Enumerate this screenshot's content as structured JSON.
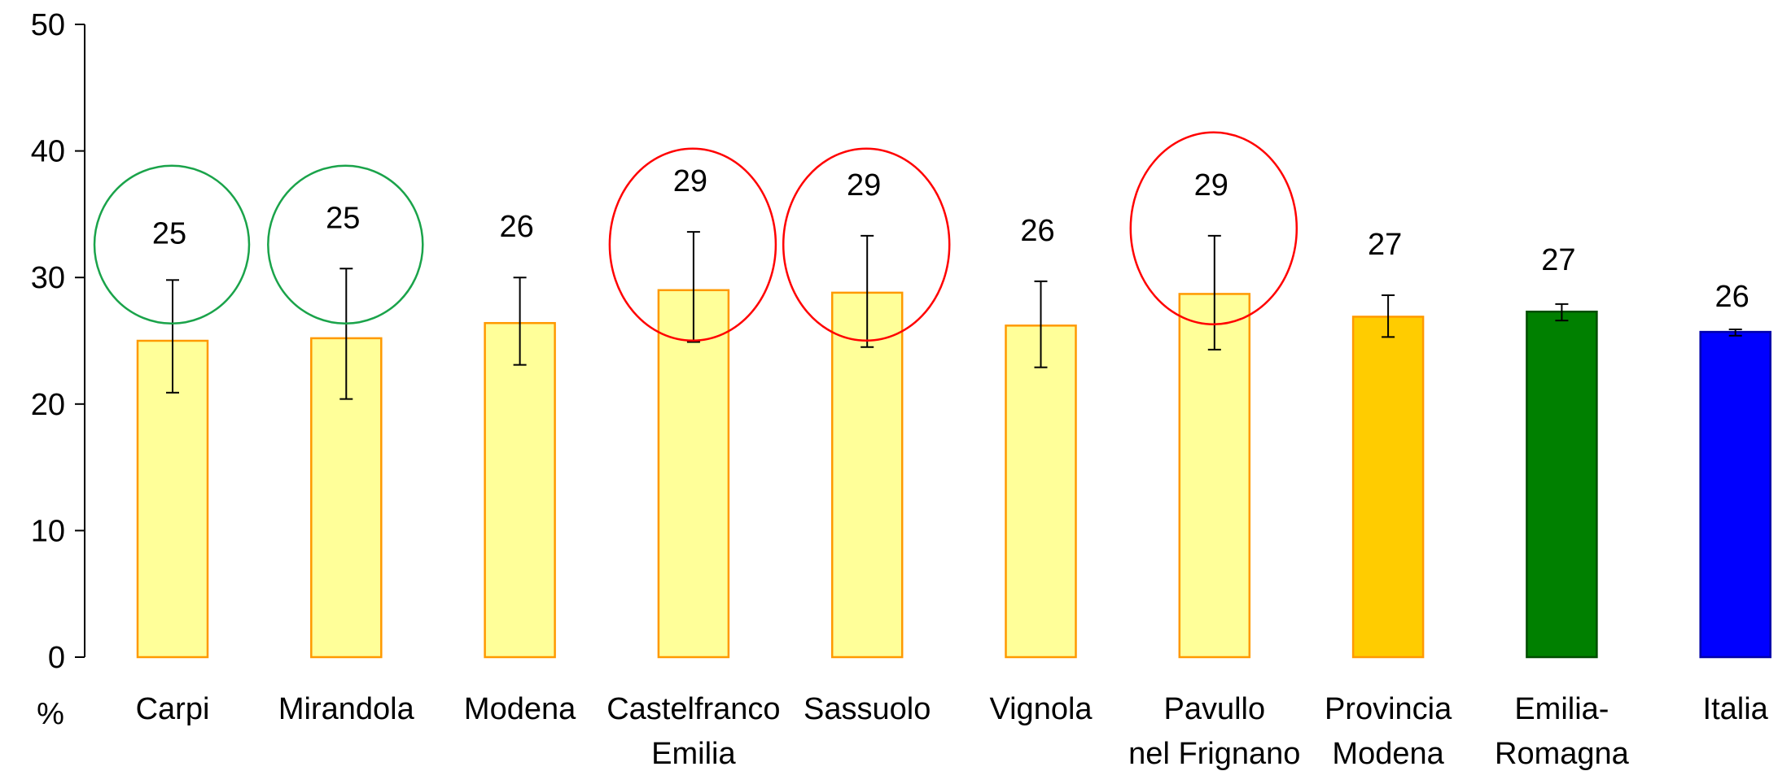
{
  "chart_data": {
    "type": "bar",
    "ylabel": "%",
    "ylim": [
      0,
      50
    ],
    "yticks": [
      0,
      10,
      20,
      30,
      40,
      50
    ],
    "grid": false,
    "legend": "none",
    "categories": [
      [
        "Carpi"
      ],
      [
        "Mirandola"
      ],
      [
        "Modena"
      ],
      [
        "Castelfranco",
        "Emilia"
      ],
      [
        "Sassuolo"
      ],
      [
        "Vignola"
      ],
      [
        "Pavullo",
        "nel Frignano"
      ],
      [
        "Provincia",
        "Modena"
      ],
      [
        "Emilia-",
        "Romagna"
      ],
      [
        "Italia"
      ]
    ],
    "values": [
      25.0,
      25.2,
      26.4,
      29.0,
      28.8,
      26.2,
      28.7,
      26.9,
      27.3,
      25.7
    ],
    "error_low": [
      20.9,
      20.4,
      23.1,
      24.9,
      24.5,
      22.9,
      24.3,
      25.3,
      26.6,
      25.4
    ],
    "error_high": [
      29.8,
      30.7,
      30.0,
      33.6,
      33.3,
      29.7,
      33.3,
      28.6,
      27.9,
      25.9
    ],
    "data_labels": [
      "25",
      "25",
      "26",
      "29",
      "29",
      "26",
      "29",
      "27",
      "27",
      "26"
    ],
    "bar_fills": [
      "#ffff99",
      "#ffff99",
      "#ffff99",
      "#ffff99",
      "#ffff99",
      "#ffff99",
      "#ffff99",
      "#ffcc00",
      "#008000",
      "#0000ff"
    ],
    "bar_strokes": [
      "#ff9900",
      "#ff9900",
      "#ff9900",
      "#ff9900",
      "#ff9900",
      "#ff9900",
      "#ff9900",
      "#ff9900",
      "#004d00",
      "#0000aa"
    ],
    "highlights": [
      {
        "index": 0,
        "color": "#1aa34a"
      },
      {
        "index": 1,
        "color": "#1aa34a"
      },
      {
        "index": 3,
        "color": "#ff0000"
      },
      {
        "index": 4,
        "color": "#ff0000"
      },
      {
        "index": 6,
        "color": "#ff0000"
      }
    ]
  }
}
